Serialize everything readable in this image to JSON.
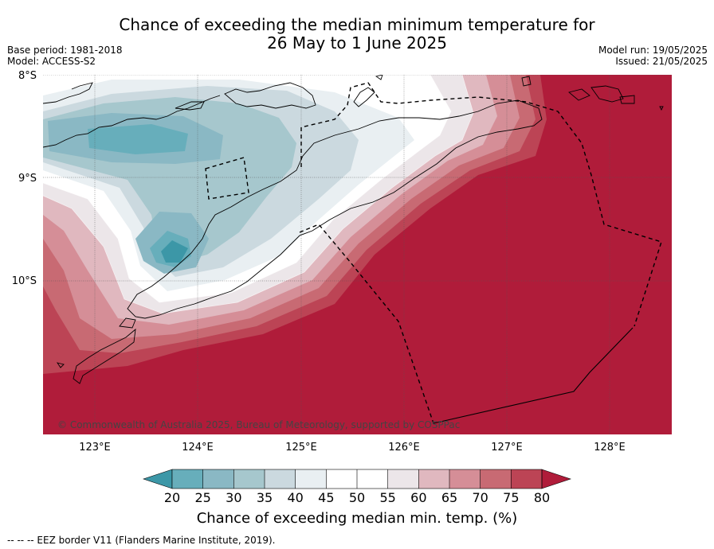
{
  "title": {
    "line1": "Chance of exceeding the median minimum temperature for",
    "line2": "26 May to 1 June 2025"
  },
  "meta_left": {
    "base_period": "Base period: 1981-2018",
    "model": "Model: ACCESS-S2"
  },
  "meta_right": {
    "model_run": "Model run: 19/05/2025",
    "issued": "Issued: 21/05/2025"
  },
  "latitude_labels": [
    "8°S",
    "9°S",
    "10°S"
  ],
  "longitude_labels": [
    "123°E",
    "124°E",
    "125°E",
    "126°E",
    "127°E",
    "128°E"
  ],
  "copyright": "© Commonwealth of Australia 2025, Bureau of Meteorology, supported by COSPPac",
  "colorbar": {
    "ticks": [
      "20",
      "25",
      "30",
      "35",
      "40",
      "45",
      "50",
      "55",
      "60",
      "65",
      "70",
      "75",
      "80"
    ],
    "colors": [
      "#3c97a7",
      "#67aebb",
      "#8ab8c4",
      "#a6c7cd",
      "#cbd9df",
      "#e9eff2",
      "#ffffff",
      "#ffffff",
      "#ece6e9",
      "#e0b8bf",
      "#d58e97",
      "#c86a73",
      "#bc4455",
      "#b01c3a"
    ],
    "label": "Chance of exceeding median min. temp. (%)"
  },
  "footer": "--  --  -- EEZ border V11 (Flanders Marine Institute, 2019)."
}
